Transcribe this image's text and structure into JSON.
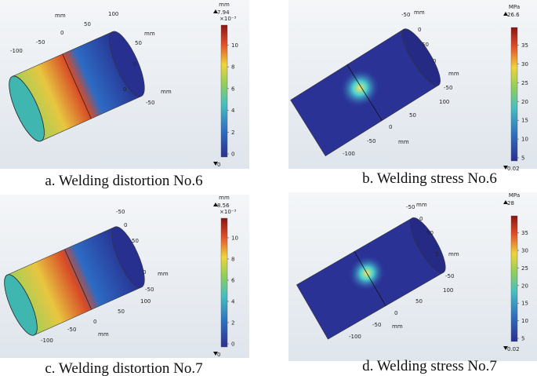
{
  "panels": [
    {
      "caption": "a. Welding distortion No.6",
      "unit": "mm",
      "max_label": "7.94",
      "exponent": "×10⁻³",
      "min_label": "0",
      "colorbar_ticks": [
        "0",
        "2",
        "4",
        "6",
        "8",
        "10"
      ],
      "axis_labels": [
        "mm",
        "100",
        "50",
        "0",
        "-50",
        "-100",
        "mm",
        "50",
        "0",
        "0",
        "mm",
        "-50"
      ]
    },
    {
      "caption": "b. Welding stress No.6",
      "unit": "MPa",
      "max_label": "26.6",
      "min_label": "0.02",
      "colorbar_ticks": [
        "5",
        "10",
        "15",
        "20",
        "25",
        "30",
        "35"
      ],
      "axis_labels": [
        "-50",
        "mm",
        "0",
        "50",
        "0",
        "mm",
        "-50",
        "100",
        "50",
        "0",
        "-50",
        "mm",
        "-100"
      ]
    },
    {
      "caption": "c. Welding distortion No.7",
      "unit": "mm",
      "max_label": "8.56",
      "exponent": "×10⁻³",
      "min_label": "0",
      "colorbar_ticks": [
        "0",
        "2",
        "4",
        "6",
        "8",
        "10"
      ],
      "axis_labels": [
        "-50",
        "0",
        "50",
        "0",
        "mm",
        "-50",
        "100",
        "50",
        "0",
        "mm",
        "-50",
        "-100"
      ]
    },
    {
      "caption": "d. Welding stress No.7",
      "unit": "MPa",
      "max_label": "28",
      "min_label": "0.02",
      "colorbar_ticks": [
        "5",
        "10",
        "15",
        "20",
        "25",
        "30",
        "35"
      ],
      "axis_labels": [
        "-50",
        "mm",
        "0",
        "50",
        "0",
        "mm",
        "-50",
        "100",
        "50",
        "0",
        "-50",
        "mm",
        "-100"
      ]
    }
  ]
}
